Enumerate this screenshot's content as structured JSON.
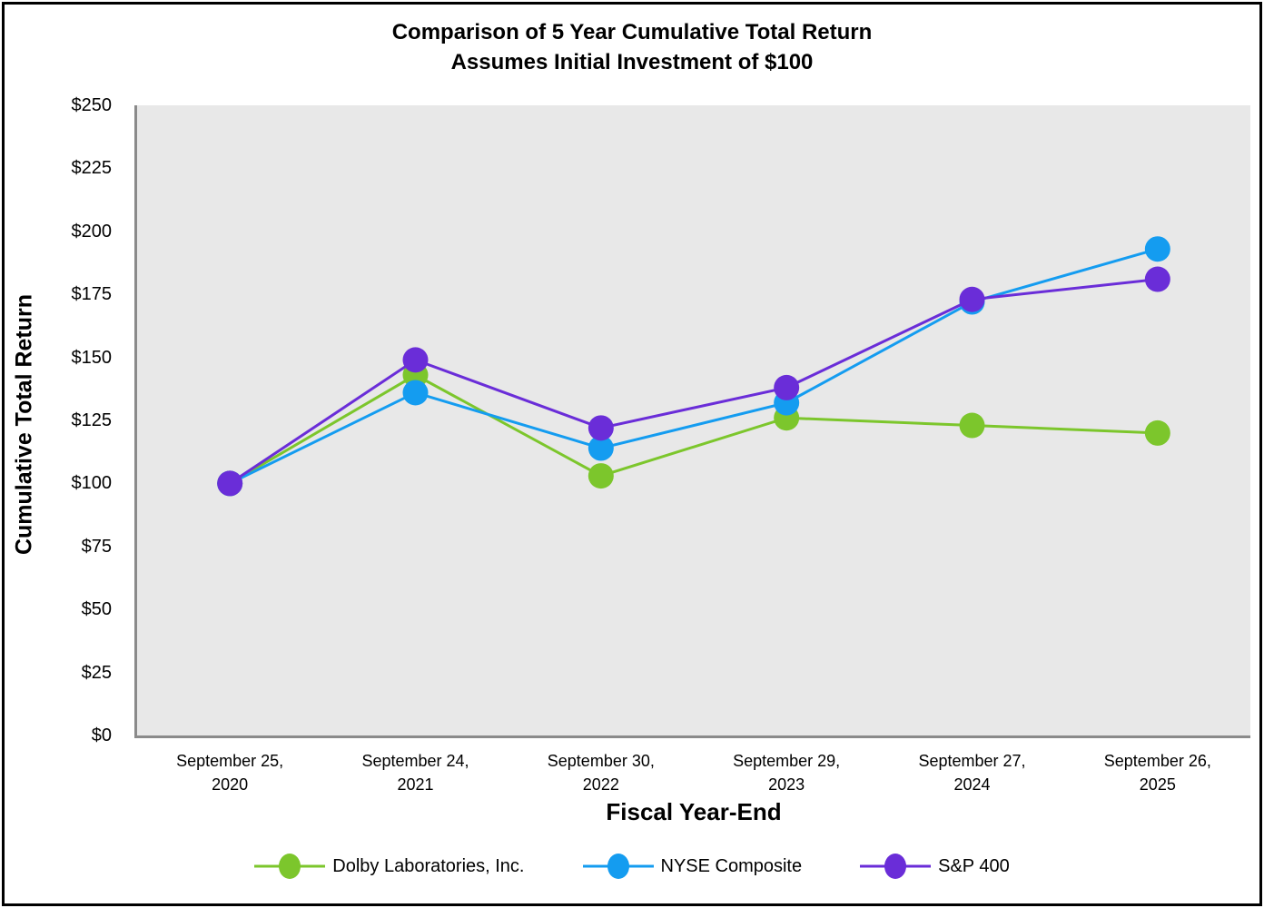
{
  "chart_data": {
    "type": "line",
    "title": "Comparison of 5 Year Cumulative Total Return",
    "subtitle": "Assumes Initial Investment of $100",
    "xlabel": "Fiscal Year-End",
    "ylabel": "Cumulative Total Return",
    "categories": [
      "September 25,\n2020",
      "September 24,\n2021",
      "September 30,\n2022",
      "September 29,\n2023",
      "September 27,\n2024",
      "September 26,\n2025"
    ],
    "series": [
      {
        "name": "Dolby Laboratories, Inc.",
        "color": "#7CC62C",
        "values": [
          100,
          143,
          103,
          126,
          123,
          120
        ]
      },
      {
        "name": "NYSE Composite",
        "color": "#149CF0",
        "values": [
          100,
          136,
          114,
          132,
          172,
          193
        ]
      },
      {
        "name": "S&P 400",
        "color": "#6A2DD8",
        "values": [
          100,
          149,
          122,
          138,
          173,
          181
        ]
      }
    ],
    "ylim": [
      0,
      250
    ],
    "y_tick_step": 25,
    "y_tick_labels": [
      "$0",
      "$25",
      "$50",
      "$75",
      "$100",
      "$125",
      "$150",
      "$175",
      "$200",
      "$225",
      "$250"
    ],
    "grid": false,
    "legend_position": "bottom",
    "plot_bg": "#E8E8E8",
    "axis_color": "#8A8A8A",
    "marker_radius": 14,
    "line_width": 3
  }
}
